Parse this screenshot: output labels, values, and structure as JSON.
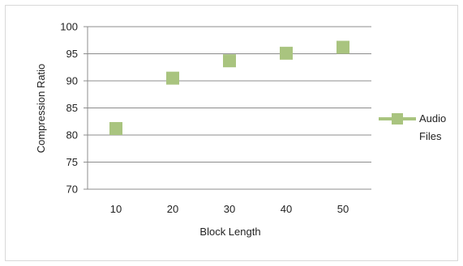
{
  "chart_data": {
    "type": "scatter",
    "title": "",
    "xlabel": "Block Length",
    "ylabel": "Compression Ratio",
    "x_ticks": [
      "10",
      "20",
      "30",
      "40",
      "50"
    ],
    "y_ticks": [
      "70",
      "75",
      "80",
      "85",
      "90",
      "95",
      "100"
    ],
    "ylim": [
      70,
      100
    ],
    "grid": "horizontal",
    "legend_position": "right",
    "series": [
      {
        "name": "Audio Files",
        "legend_lines": [
          "Audio",
          "Files"
        ],
        "color": "#a9c47f",
        "x": [
          10,
          20,
          30,
          40,
          50
        ],
        "y": [
          81.2,
          90.5,
          93.7,
          95.1,
          96.2
        ]
      }
    ]
  }
}
